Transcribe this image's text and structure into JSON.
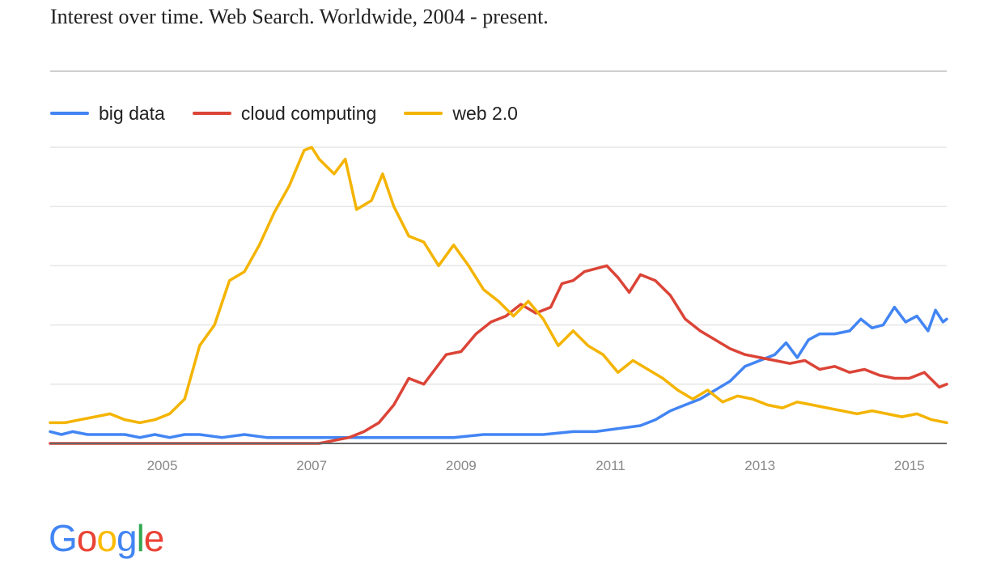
{
  "header": {
    "title": "Interest over time. Web Search. Worldwide, 2004 - present."
  },
  "logo": {
    "text": "Google",
    "letter_colors": [
      "#4285f4",
      "#ea4335",
      "#fbbc05",
      "#4285f4",
      "#34a853",
      "#ea4335"
    ]
  },
  "chart_data": {
    "type": "line",
    "title": "Interest over time. Web Search. Worldwide, 2004 - present.",
    "xlabel": "",
    "ylabel": "",
    "x_unit": "year (fractional)",
    "xlim": [
      2004.0,
      2016.0
    ],
    "ylim": [
      0,
      100
    ],
    "grid": true,
    "legend_position": "top-left",
    "x_ticks": [
      2005,
      2007,
      2009,
      2011,
      2013,
      2015
    ],
    "series": [
      {
        "name": "big data",
        "color": "#4285f4",
        "points": [
          [
            2004.0,
            4
          ],
          [
            2004.15,
            3
          ],
          [
            2004.3,
            4
          ],
          [
            2004.5,
            3
          ],
          [
            2004.8,
            3
          ],
          [
            2005.0,
            3
          ],
          [
            2005.2,
            2
          ],
          [
            2005.4,
            3
          ],
          [
            2005.6,
            2
          ],
          [
            2005.8,
            3
          ],
          [
            2006.0,
            3
          ],
          [
            2006.3,
            2
          ],
          [
            2006.6,
            3
          ],
          [
            2006.9,
            2
          ],
          [
            2007.2,
            2
          ],
          [
            2007.6,
            2
          ],
          [
            2007.9,
            2
          ],
          [
            2008.2,
            2
          ],
          [
            2008.6,
            2
          ],
          [
            2009.0,
            2
          ],
          [
            2009.4,
            2
          ],
          [
            2009.8,
            3
          ],
          [
            2010.2,
            3
          ],
          [
            2010.6,
            3
          ],
          [
            2011.0,
            4
          ],
          [
            2011.3,
            4
          ],
          [
            2011.6,
            5
          ],
          [
            2011.9,
            6
          ],
          [
            2012.1,
            8
          ],
          [
            2012.3,
            11
          ],
          [
            2012.5,
            13
          ],
          [
            2012.7,
            15
          ],
          [
            2012.9,
            18
          ],
          [
            2013.1,
            21
          ],
          [
            2013.3,
            26
          ],
          [
            2013.5,
            28
          ],
          [
            2013.7,
            30
          ],
          [
            2013.85,
            34
          ],
          [
            2014.0,
            29
          ],
          [
            2014.15,
            35
          ],
          [
            2014.3,
            37
          ],
          [
            2014.5,
            37
          ],
          [
            2014.7,
            38
          ],
          [
            2014.85,
            42
          ],
          [
            2015.0,
            39
          ],
          [
            2015.15,
            40
          ],
          [
            2015.3,
            46
          ],
          [
            2015.45,
            41
          ],
          [
            2015.6,
            43
          ],
          [
            2015.75,
            38
          ],
          [
            2015.85,
            45
          ],
          [
            2015.95,
            41
          ],
          [
            2016.0,
            42
          ]
        ]
      },
      {
        "name": "cloud computing",
        "color": "#db4437",
        "points": [
          [
            2004.0,
            0
          ],
          [
            2005.0,
            0
          ],
          [
            2006.0,
            0
          ],
          [
            2007.0,
            0
          ],
          [
            2007.6,
            0
          ],
          [
            2007.8,
            1
          ],
          [
            2008.0,
            2
          ],
          [
            2008.2,
            4
          ],
          [
            2008.4,
            7
          ],
          [
            2008.6,
            13
          ],
          [
            2008.8,
            22
          ],
          [
            2009.0,
            20
          ],
          [
            2009.15,
            25
          ],
          [
            2009.3,
            30
          ],
          [
            2009.5,
            31
          ],
          [
            2009.7,
            37
          ],
          [
            2009.9,
            41
          ],
          [
            2010.1,
            43
          ],
          [
            2010.3,
            47
          ],
          [
            2010.5,
            44
          ],
          [
            2010.7,
            46
          ],
          [
            2010.85,
            54
          ],
          [
            2011.0,
            55
          ],
          [
            2011.15,
            58
          ],
          [
            2011.3,
            59
          ],
          [
            2011.45,
            60
          ],
          [
            2011.6,
            56
          ],
          [
            2011.75,
            51
          ],
          [
            2011.9,
            57
          ],
          [
            2012.1,
            55
          ],
          [
            2012.3,
            50
          ],
          [
            2012.5,
            42
          ],
          [
            2012.7,
            38
          ],
          [
            2012.9,
            35
          ],
          [
            2013.1,
            32
          ],
          [
            2013.3,
            30
          ],
          [
            2013.5,
            29
          ],
          [
            2013.7,
            28
          ],
          [
            2013.9,
            27
          ],
          [
            2014.1,
            28
          ],
          [
            2014.3,
            25
          ],
          [
            2014.5,
            26
          ],
          [
            2014.7,
            24
          ],
          [
            2014.9,
            25
          ],
          [
            2015.1,
            23
          ],
          [
            2015.3,
            22
          ],
          [
            2015.5,
            22
          ],
          [
            2015.7,
            24
          ],
          [
            2015.9,
            19
          ],
          [
            2016.0,
            20
          ]
        ]
      },
      {
        "name": "web 2.0",
        "color": "#f4b400",
        "points": [
          [
            2004.0,
            7
          ],
          [
            2004.2,
            7
          ],
          [
            2004.4,
            8
          ],
          [
            2004.6,
            9
          ],
          [
            2004.8,
            10
          ],
          [
            2005.0,
            8
          ],
          [
            2005.2,
            7
          ],
          [
            2005.4,
            8
          ],
          [
            2005.6,
            10
          ],
          [
            2005.8,
            15
          ],
          [
            2006.0,
            33
          ],
          [
            2006.2,
            40
          ],
          [
            2006.4,
            55
          ],
          [
            2006.6,
            58
          ],
          [
            2006.8,
            67
          ],
          [
            2007.0,
            78
          ],
          [
            2007.2,
            87
          ],
          [
            2007.4,
            99
          ],
          [
            2007.5,
            100
          ],
          [
            2007.6,
            96
          ],
          [
            2007.8,
            91
          ],
          [
            2007.95,
            96
          ],
          [
            2008.1,
            79
          ],
          [
            2008.3,
            82
          ],
          [
            2008.45,
            91
          ],
          [
            2008.6,
            80
          ],
          [
            2008.8,
            70
          ],
          [
            2009.0,
            68
          ],
          [
            2009.2,
            60
          ],
          [
            2009.4,
            67
          ],
          [
            2009.6,
            60
          ],
          [
            2009.8,
            52
          ],
          [
            2010.0,
            48
          ],
          [
            2010.2,
            43
          ],
          [
            2010.4,
            48
          ],
          [
            2010.6,
            42
          ],
          [
            2010.8,
            33
          ],
          [
            2011.0,
            38
          ],
          [
            2011.2,
            33
          ],
          [
            2011.4,
            30
          ],
          [
            2011.6,
            24
          ],
          [
            2011.8,
            28
          ],
          [
            2012.0,
            25
          ],
          [
            2012.2,
            22
          ],
          [
            2012.4,
            18
          ],
          [
            2012.6,
            15
          ],
          [
            2012.8,
            18
          ],
          [
            2013.0,
            14
          ],
          [
            2013.2,
            16
          ],
          [
            2013.4,
            15
          ],
          [
            2013.6,
            13
          ],
          [
            2013.8,
            12
          ],
          [
            2014.0,
            14
          ],
          [
            2014.2,
            13
          ],
          [
            2014.4,
            12
          ],
          [
            2014.6,
            11
          ],
          [
            2014.8,
            10
          ],
          [
            2015.0,
            11
          ],
          [
            2015.2,
            10
          ],
          [
            2015.4,
            9
          ],
          [
            2015.6,
            10
          ],
          [
            2015.8,
            8
          ],
          [
            2016.0,
            7
          ]
        ]
      }
    ]
  }
}
